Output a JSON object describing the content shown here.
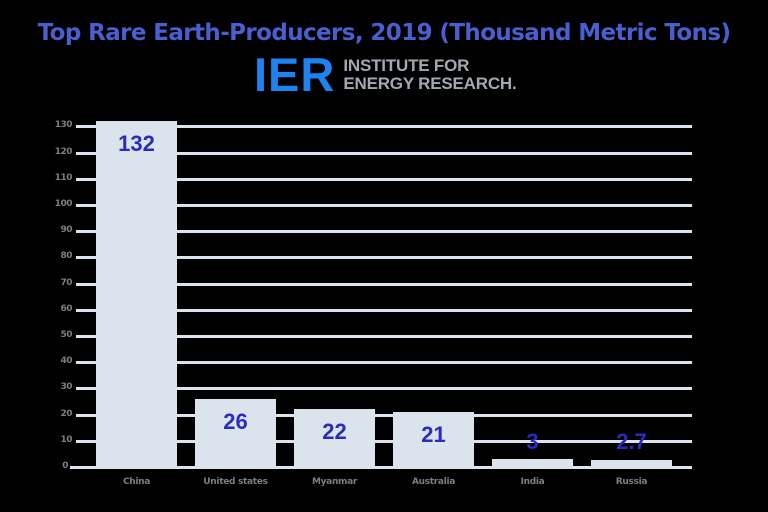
{
  "header": {
    "title": "Top Rare Earth-Producers, 2019 (Thousand Metric Tons)",
    "logo": {
      "mark": "IER",
      "line1": "INSTITUTE FOR",
      "line2": "ENERGY RESEARCH."
    }
  },
  "colors": {
    "title": "#4a5fcf",
    "logo_mark": "#1e82f0",
    "logo_text": "#a3a9b2",
    "bar": "#dbe4ed",
    "value_label": "#2b2bbf",
    "axis_text": "#7a7e85",
    "background": "#000000"
  },
  "chart_data": {
    "type": "bar",
    "title": "Top Rare Earth-Producers, 2019 (Thousand Metric Tons)",
    "xlabel": "",
    "ylabel": "",
    "categories": [
      "China",
      "United states",
      "Myanmar",
      "Australia",
      "India",
      "Russia"
    ],
    "values": [
      132,
      26,
      22,
      21,
      3,
      2.7
    ],
    "value_labels": [
      "132",
      "26",
      "22",
      "21",
      "3",
      "2.7"
    ],
    "yticks": [
      0,
      10,
      20,
      30,
      40,
      50,
      60,
      70,
      80,
      90,
      100,
      110,
      120,
      130
    ],
    "ylim": [
      0,
      132
    ],
    "grid": true,
    "legend": null
  }
}
